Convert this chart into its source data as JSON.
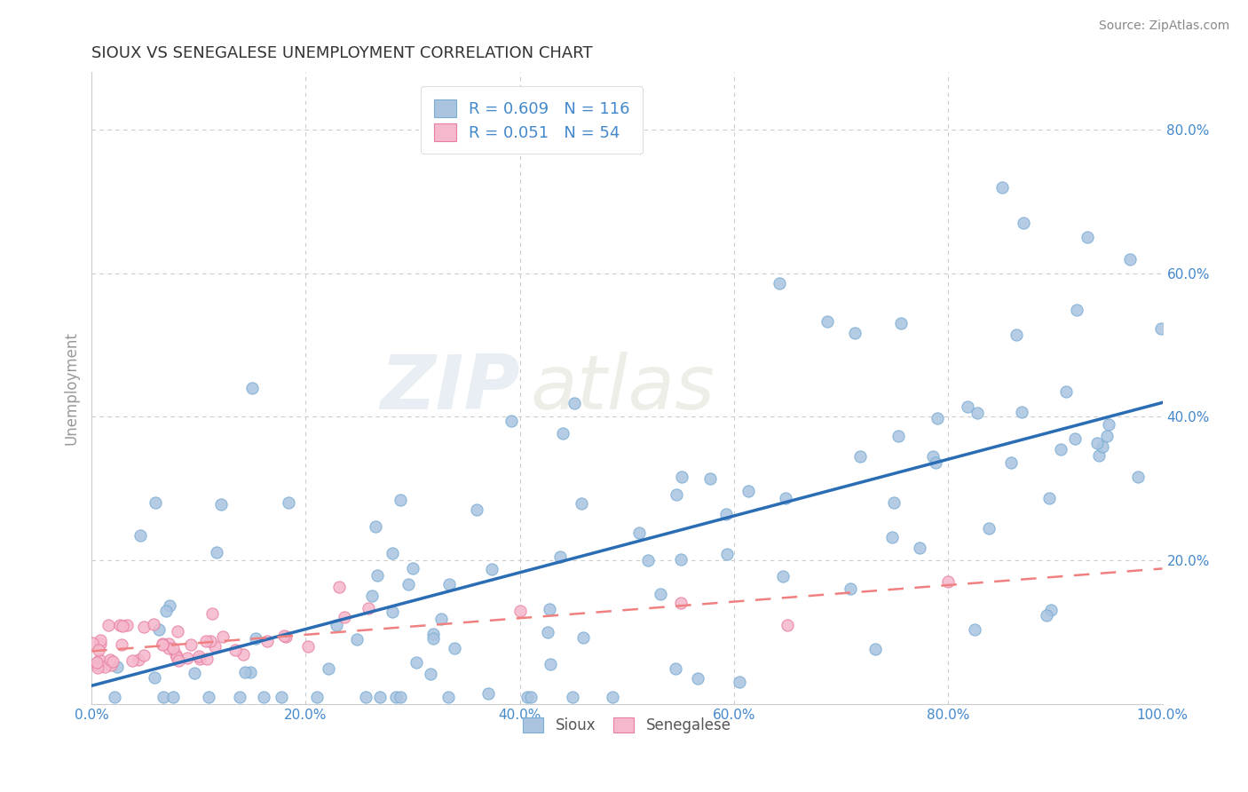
{
  "title": "SIOUX VS SENEGALESE UNEMPLOYMENT CORRELATION CHART",
  "source": "Source: ZipAtlas.com",
  "ylabel": "Unemployment",
  "xlim": [
    0.0,
    1.0
  ],
  "ylim": [
    0.0,
    0.88
  ],
  "xtick_labels": [
    "0.0%",
    "20.0%",
    "40.0%",
    "60.0%",
    "80.0%",
    "100.0%"
  ],
  "xtick_vals": [
    0.0,
    0.2,
    0.4,
    0.6,
    0.8,
    1.0
  ],
  "ytick_labels": [
    "20.0%",
    "40.0%",
    "60.0%",
    "80.0%"
  ],
  "ytick_vals": [
    0.2,
    0.4,
    0.6,
    0.8
  ],
  "legend_labels": [
    "Sioux",
    "Senegalese"
  ],
  "sioux_color": "#aac4e0",
  "sioux_edge_color": "#7aadd4",
  "senegalese_color": "#f5b8cc",
  "senegalese_edge_color": "#e87fa0",
  "sioux_line_color": "#2a6db5",
  "senegalese_line_color": "#f08080",
  "r_sioux": 0.609,
  "n_sioux": 116,
  "r_senegalese": 0.051,
  "n_senegalese": 54,
  "watermark_zip": "ZIP",
  "watermark_atlas": "atlas",
  "background_color": "#ffffff",
  "grid_color": "#cccccc",
  "title_color": "#333333",
  "axis_color": "#999999",
  "tick_color": "#4488cc",
  "source_color": "#888888"
}
